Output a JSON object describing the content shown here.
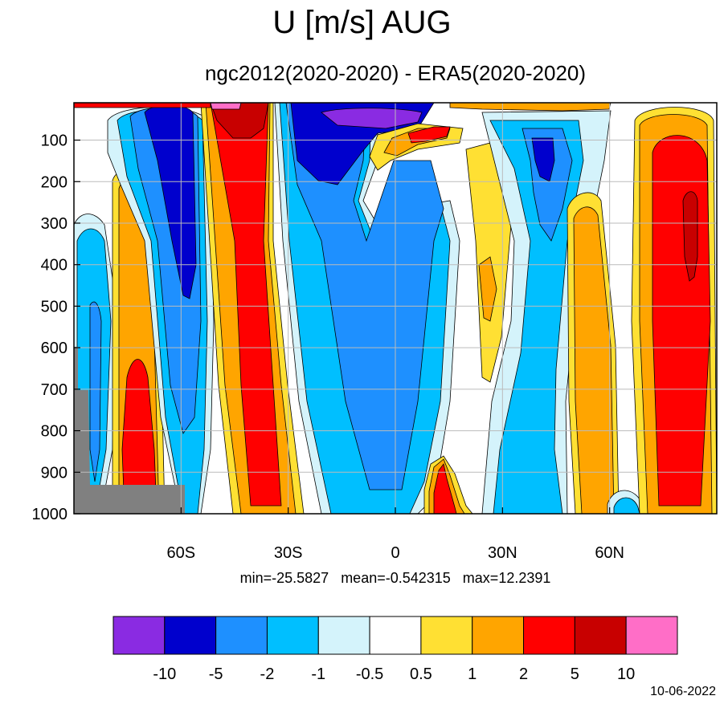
{
  "title": "U [m/s] AUG",
  "subtitle": "ngc2012(2020-2020) - ERA5(2020-2020)",
  "stats_text": "min=-25.5827   mean=-0.542315   max=12.2391",
  "date": "10-06-2022",
  "chart_data": {
    "type": "heatmap",
    "title": "U [m/s] AUG",
    "subtitle": "ngc2012(2020-2020) - ERA5(2020-2020)",
    "x_ticks": [
      {
        "value": -60,
        "label": "60S"
      },
      {
        "value": -30,
        "label": "30S"
      },
      {
        "value": 0,
        "label": "0"
      },
      {
        "value": 30,
        "label": "30N"
      },
      {
        "value": 60,
        "label": "60N"
      }
    ],
    "y_ticks": [
      100,
      200,
      300,
      400,
      500,
      600,
      700,
      800,
      900,
      1000
    ],
    "xlim": [
      -90,
      90
    ],
    "ylim": [
      1000,
      10
    ],
    "grid": true,
    "colorbar": {
      "levels": [
        "-10",
        "-5",
        "-2",
        "-1",
        "-0.5",
        "0.5",
        "1",
        "2",
        "5",
        "10"
      ],
      "colors": [
        "#8a2be2",
        "#0000cd",
        "#1e90ff",
        "#00bfff",
        "#d4f3fb",
        "#ffffff",
        "#ffe033",
        "#ffa500",
        "#ff0000",
        "#c80000",
        "#ff6ec7"
      ]
    },
    "stats": {
      "min": -25.5827,
      "mean": -0.542315,
      "max": 12.2391
    }
  }
}
